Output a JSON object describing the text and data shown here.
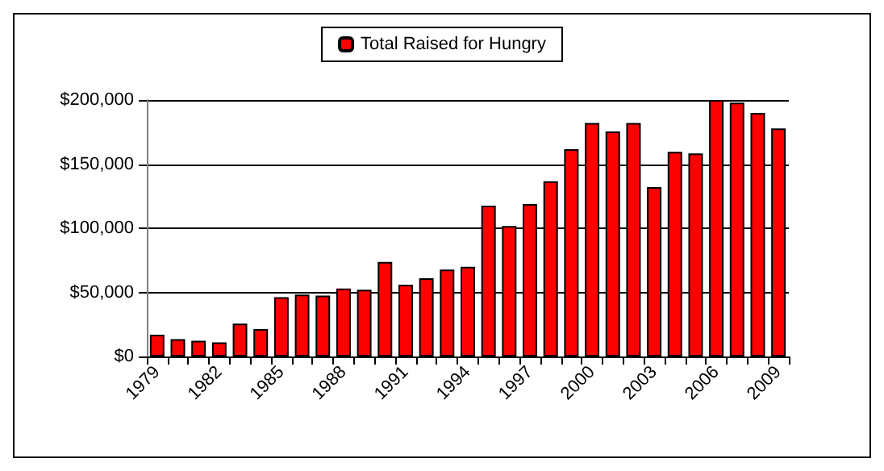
{
  "chart_data": {
    "type": "bar",
    "categories": [
      "1979",
      null,
      null,
      "1982",
      null,
      null,
      "1985",
      null,
      null,
      "1988",
      null,
      null,
      "1991",
      null,
      null,
      "1994",
      null,
      null,
      "1997",
      null,
      null,
      "2000",
      null,
      null,
      "2003",
      null,
      null,
      "2006",
      null,
      null,
      "2009"
    ],
    "series": [
      {
        "name": "Total Raised for Hungry",
        "color": "#ff0000",
        "values": [
          17000,
          13500,
          12300,
          11000,
          25700,
          21400,
          46300,
          48300,
          47500,
          53000,
          52000,
          73700,
          56000,
          61000,
          67700,
          70000,
          117600,
          101800,
          118800,
          136600,
          161600,
          182000,
          175400,
          182000,
          132000,
          159600,
          158400,
          200000,
          198000,
          190000,
          177800
        ]
      }
    ],
    "ylim": [
      0,
      200000
    ],
    "yticks": [
      {
        "value": 0,
        "label": "$0"
      },
      {
        "value": 50000,
        "label": "$50,000"
      },
      {
        "value": 100000,
        "label": "$100,000"
      },
      {
        "value": 150000,
        "label": "$150,000"
      },
      {
        "value": 200000,
        "label": "$200,000"
      }
    ],
    "grid": "y",
    "legend": "top"
  }
}
